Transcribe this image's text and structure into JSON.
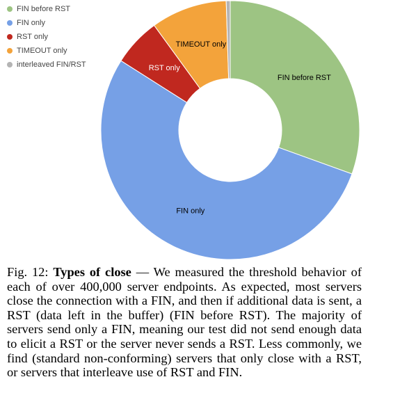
{
  "chart_data": {
    "type": "pie",
    "donut": true,
    "legend_position": "top-left",
    "series": [
      {
        "name": "FIN before RST",
        "value": 30.5,
        "color": "#9dc483",
        "label": "FIN before RST",
        "label_color": "#000000"
      },
      {
        "name": "FIN only",
        "value": 53.5,
        "color": "#76a0e6",
        "label": "FIN only",
        "label_color": "#000000"
      },
      {
        "name": "RST only",
        "value": 6.0,
        "color": "#c0281f",
        "label": "RST only",
        "label_color": "#ffffff"
      },
      {
        "name": "TIMEOUT only",
        "value": 9.5,
        "color": "#f3a33b",
        "label": "TIMEOUT only",
        "label_color": "#000000"
      },
      {
        "name": "interleaved FIN/RST",
        "value": 0.5,
        "color": "#b4b4b4",
        "label": "",
        "label_color": "#000000"
      }
    ]
  },
  "caption": {
    "fig": "Fig. 12: ",
    "title": "Types of close",
    "text": "— We measured the threshold behavior of each of over 400,000 server endpoints. As expected, most servers close the connection with a FIN, and then if additional data is sent, a RST (data left in the buffer) (FIN before RST). The majority of servers send only a FIN, meaning our test did not send enough data to elicit a RST or the server never sends a RST. Less commonly, we find (standard non-conforming) servers that only close with a RST, or servers that interleave use of RST and FIN."
  }
}
